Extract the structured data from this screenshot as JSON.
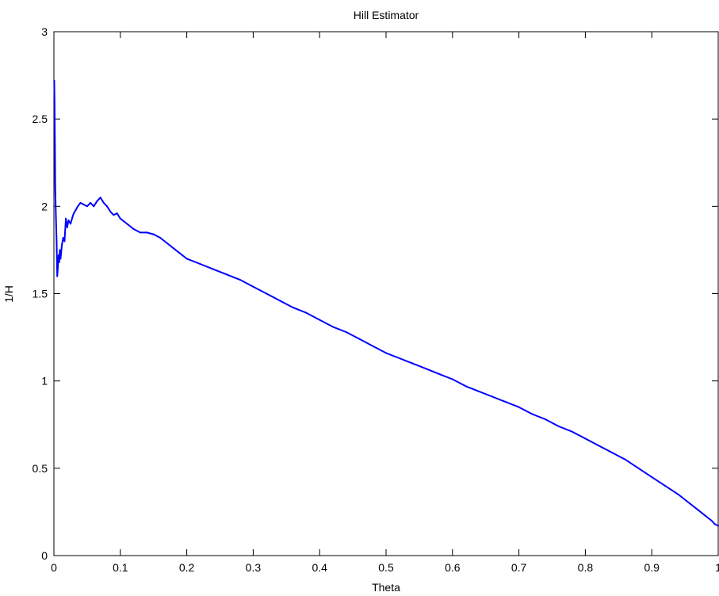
{
  "chart_data": {
    "type": "line",
    "title": "Hill Estimator",
    "xlabel": "Theta",
    "ylabel": "1/H",
    "xlim": [
      0,
      1
    ],
    "ylim": [
      0,
      3
    ],
    "xticks": [
      0,
      0.1,
      0.2,
      0.3,
      0.4,
      0.5,
      0.6,
      0.7,
      0.8,
      0.9,
      1
    ],
    "xtick_labels": [
      "0",
      "0.1",
      "0.2",
      "0.3",
      "0.4",
      "0.5",
      "0.6",
      "0.7",
      "0.8",
      "0.9",
      "1"
    ],
    "yticks": [
      0,
      0.5,
      1,
      1.5,
      2,
      2.5,
      3
    ],
    "ytick_labels": [
      "0",
      "0.5",
      "1",
      "1.5",
      "2",
      "2.5",
      "3"
    ],
    "grid": false,
    "line_color": "#0000ff",
    "series": [
      {
        "x": [
          0.0005,
          0.001,
          0.0015,
          0.002,
          0.003,
          0.004,
          0.005,
          0.006,
          0.007,
          0.008,
          0.009,
          0.01,
          0.012,
          0.014,
          0.016,
          0.018,
          0.02,
          0.022,
          0.025,
          0.028,
          0.03,
          0.033,
          0.036,
          0.04,
          0.045,
          0.05,
          0.055,
          0.06,
          0.065,
          0.07,
          0.075,
          0.08,
          0.085,
          0.09,
          0.095,
          0.1,
          0.11,
          0.12,
          0.13,
          0.14,
          0.15,
          0.16,
          0.17,
          0.18,
          0.19,
          0.2,
          0.22,
          0.24,
          0.26,
          0.28,
          0.3,
          0.32,
          0.34,
          0.36,
          0.38,
          0.4,
          0.42,
          0.44,
          0.46,
          0.48,
          0.5,
          0.52,
          0.54,
          0.56,
          0.58,
          0.6,
          0.62,
          0.64,
          0.66,
          0.68,
          0.7,
          0.72,
          0.74,
          0.76,
          0.78,
          0.8,
          0.82,
          0.84,
          0.86,
          0.88,
          0.9,
          0.92,
          0.94,
          0.96,
          0.97,
          0.98,
          0.99,
          0.995,
          1.0
        ],
        "y": [
          2.72,
          2.6,
          2.35,
          2.1,
          1.95,
          1.8,
          1.6,
          1.65,
          1.72,
          1.68,
          1.75,
          1.7,
          1.78,
          1.82,
          1.8,
          1.93,
          1.88,
          1.92,
          1.9,
          1.94,
          1.96,
          1.98,
          2.0,
          2.02,
          2.01,
          2.0,
          2.02,
          2.0,
          2.03,
          2.05,
          2.02,
          2.0,
          1.97,
          1.95,
          1.96,
          1.93,
          1.9,
          1.87,
          1.85,
          1.85,
          1.84,
          1.82,
          1.79,
          1.76,
          1.73,
          1.7,
          1.67,
          1.64,
          1.61,
          1.58,
          1.54,
          1.5,
          1.46,
          1.42,
          1.39,
          1.35,
          1.31,
          1.28,
          1.24,
          1.2,
          1.16,
          1.13,
          1.1,
          1.07,
          1.04,
          1.01,
          0.97,
          0.94,
          0.91,
          0.88,
          0.85,
          0.81,
          0.78,
          0.74,
          0.71,
          0.67,
          0.63,
          0.59,
          0.55,
          0.5,
          0.45,
          0.4,
          0.35,
          0.29,
          0.26,
          0.23,
          0.2,
          0.18,
          0.17
        ]
      }
    ]
  }
}
